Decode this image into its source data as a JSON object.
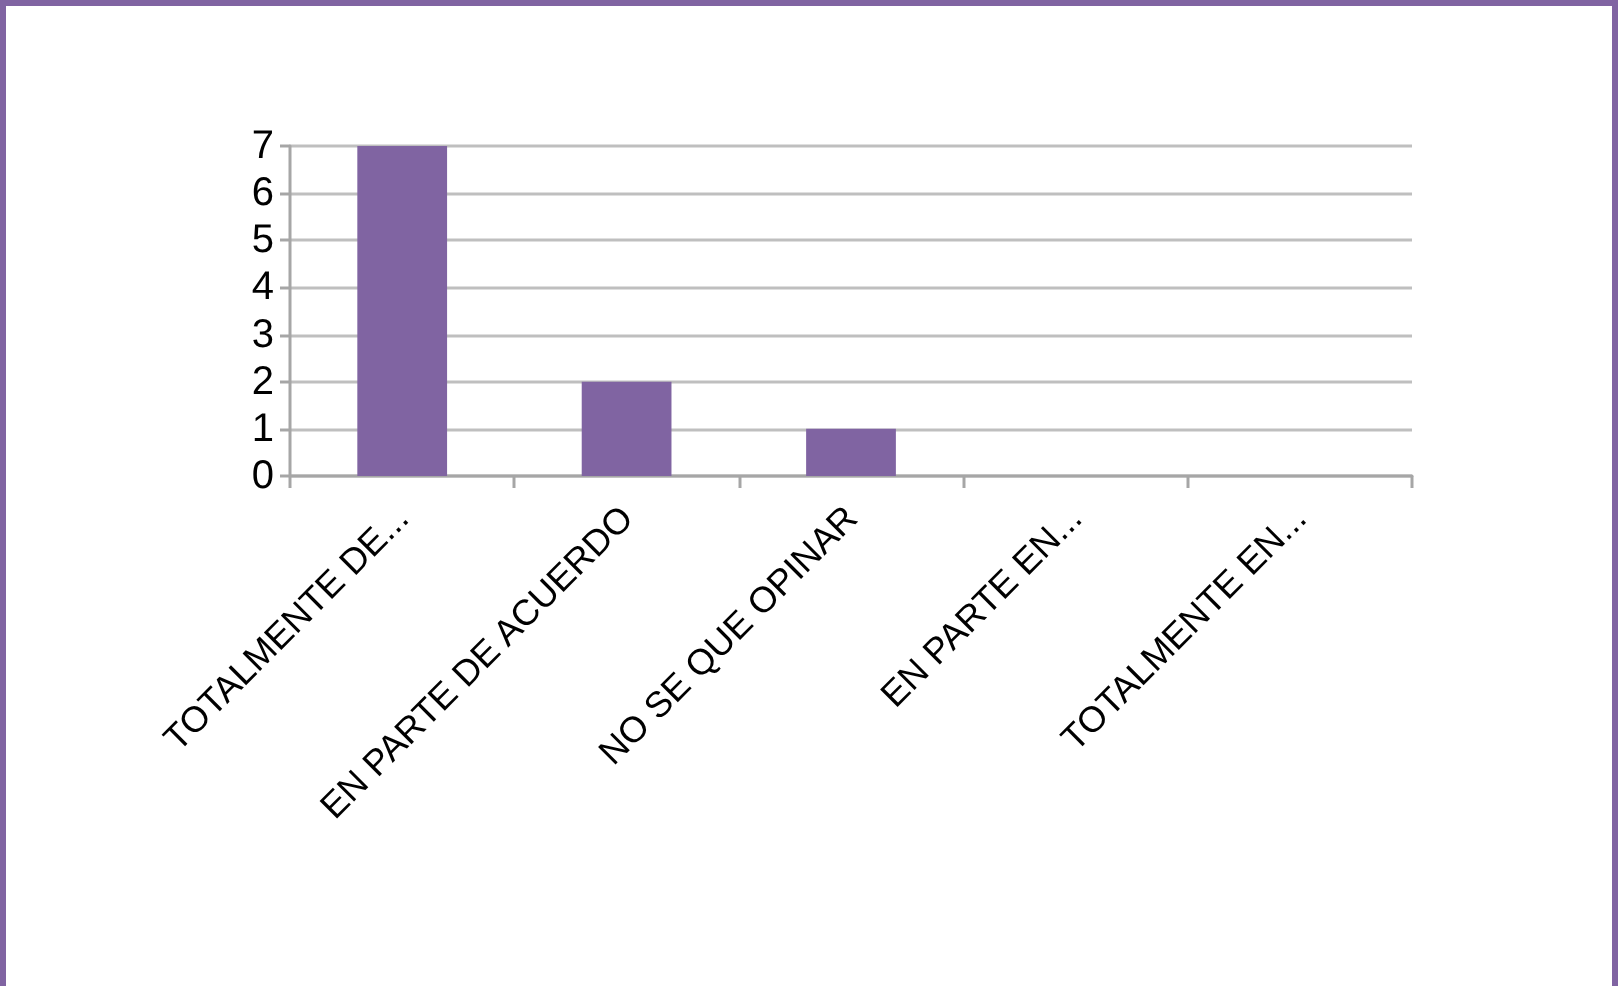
{
  "chart_data": {
    "type": "bar",
    "categories": [
      "TOTALMENTE DE...",
      "EN PARTE DE ACUERDO",
      "NO SE QUE OPINAR",
      "EN PARTE EN...",
      "TOTALMENTE EN..."
    ],
    "values": [
      7,
      2,
      1,
      0,
      0
    ],
    "color": "#8064a2",
    "ylim": [
      0,
      7
    ],
    "yticks": [
      0,
      1,
      2,
      3,
      4,
      5,
      6,
      7
    ],
    "grid": "y"
  }
}
